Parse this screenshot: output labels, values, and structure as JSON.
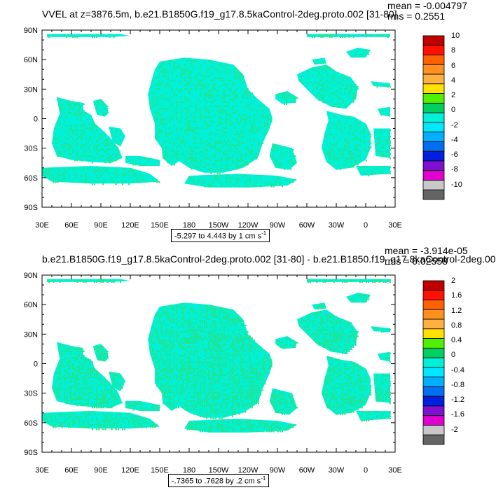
{
  "colors": {
    "background": "#ffffff",
    "frame": "#000000",
    "ocean_main": "#00f0d8",
    "ocean_speckle": "#30e070"
  },
  "colorbar_palette": [
    "#c00000",
    "#ff1000",
    "#ff6000",
    "#ff9020",
    "#ffb040",
    "#ffe000",
    "#50f000",
    "#00d060",
    "#00f0d8",
    "#00e8ff",
    "#00b0ff",
    "#0070f0",
    "#0020e0",
    "#8010d0",
    "#e000d0",
    "#c8c8c8",
    "#646464"
  ],
  "panels": [
    {
      "id": "top",
      "title": "VVEL at z=3876.5m, b.e21.B1850G.f19_g17.8.5kaControl-2deg.proto.002 [31-80]",
      "mean_label": "mean = -0.004797",
      "rms_label": "rms = 0.2551",
      "range_label": "-5.297 to 4.443 by 1 cm s",
      "range_unit_exp": "-1",
      "lat_labels": [
        "90N",
        "60N",
        "30N",
        "0",
        "30S",
        "60S",
        "90S"
      ],
      "lon_labels": [
        "30E",
        "60E",
        "90E",
        "120E",
        "150E",
        "180",
        "150W",
        "120W",
        "90W",
        "60W",
        "30W",
        "0",
        "30E"
      ],
      "colorbar_labels": [
        "10",
        "8",
        "6",
        "4",
        "2",
        "0",
        "-2",
        "-4",
        "-6",
        "-8",
        "-10"
      ]
    },
    {
      "id": "bottom",
      "title": "b.e21.B1850G.f19_g17.8.5kaControl-2deg.proto.002 [31-80] - b.e21.B1850.f19_g17.8kaControl-2deg.00",
      "mean_label": "mean = -3.914e-05",
      "rms_label": "rms = 0.02558",
      "range_label": "-.7365 to .7628 by .2 cm s",
      "range_unit_exp": "-1",
      "lat_labels": [
        "90N",
        "60N",
        "30N",
        "0",
        "30S",
        "60S",
        "90S"
      ],
      "lon_labels": [
        "30E",
        "60E",
        "90E",
        "120E",
        "150E",
        "180",
        "150W",
        "120W",
        "90W",
        "60W",
        "30W",
        "0",
        "30E"
      ],
      "colorbar_labels": [
        "2",
        "1.6",
        "1.2",
        "0.8",
        "0.4",
        "0",
        "-0.4",
        "-0.8",
        "-1.2",
        "-1.6",
        "-2"
      ]
    }
  ]
}
